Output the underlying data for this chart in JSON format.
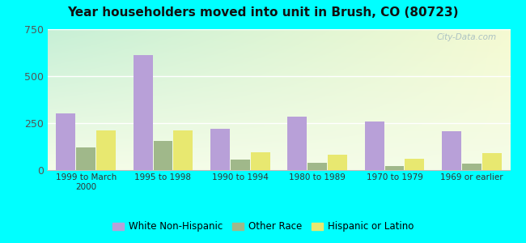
{
  "categories": [
    "1999 to March\n2000",
    "1995 to 1998",
    "1990 to 1994",
    "1980 to 1989",
    "1970 to 1979",
    "1969 or earlier"
  ],
  "series": {
    "White Non-Hispanic": [
      300,
      610,
      220,
      285,
      260,
      205
    ],
    "Other Race": [
      120,
      155,
      55,
      40,
      20,
      35
    ],
    "Hispanic or Latino": [
      210,
      210,
      95,
      80,
      60,
      90
    ]
  },
  "colors": {
    "White Non-Hispanic": "#b8a0d8",
    "Other Race": "#a0b88a",
    "Hispanic or Latino": "#e8e870"
  },
  "title": "Year householders moved into unit in Brush, CO (80723)",
  "ylim": [
    0,
    750
  ],
  "yticks": [
    0,
    250,
    500,
    750
  ],
  "bar_width": 0.26,
  "outer_bg": "#00ffff",
  "watermark": "City-Data.com",
  "legend_labels": [
    "White Non-Hispanic",
    "Other Race",
    "Hispanic or Latino"
  ]
}
